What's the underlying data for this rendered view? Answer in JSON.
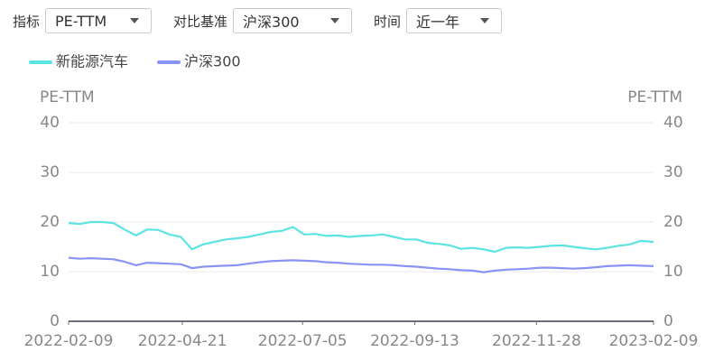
{
  "controls": [
    {
      "label": "指标",
      "value": "PE-TTM"
    },
    {
      "label": "对比基准",
      "value": "沪深300"
    },
    {
      "label": "时间",
      "value": "近一年"
    }
  ],
  "chart_data": {
    "type": "line",
    "y_label": "PE-TTM",
    "y2_label": "PE-TTM",
    "x": [
      "2022-02-09",
      "2022-02-16",
      "2022-02-23",
      "2022-03-02",
      "2022-03-09",
      "2022-03-16",
      "2022-03-23",
      "2022-03-30",
      "2022-04-06",
      "2022-04-13",
      "2022-04-20",
      "2022-04-27",
      "2022-05-04",
      "2022-05-11",
      "2022-05-18",
      "2022-05-25",
      "2022-06-01",
      "2022-06-08",
      "2022-06-15",
      "2022-06-22",
      "2022-06-29",
      "2022-07-06",
      "2022-07-13",
      "2022-07-20",
      "2022-07-27",
      "2022-08-03",
      "2022-08-10",
      "2022-08-17",
      "2022-08-24",
      "2022-08-31",
      "2022-09-07",
      "2022-09-14",
      "2022-09-21",
      "2022-09-28",
      "2022-10-05",
      "2022-10-12",
      "2022-10-19",
      "2022-10-26",
      "2022-11-02",
      "2022-11-09",
      "2022-11-16",
      "2022-11-23",
      "2022-11-30",
      "2022-12-07",
      "2022-12-14",
      "2022-12-21",
      "2022-12-28",
      "2023-01-04",
      "2023-01-11",
      "2023-01-18",
      "2023-01-25",
      "2023-02-01",
      "2023-02-09"
    ],
    "series": [
      {
        "name": "新能源汽车",
        "color": "#5ee3e3",
        "values": [
          19.8,
          19.6,
          20.0,
          20.0,
          19.8,
          18.5,
          17.3,
          18.5,
          18.4,
          17.5,
          17.0,
          14.5,
          15.5,
          16.0,
          16.5,
          16.7,
          17.0,
          17.5,
          18.0,
          18.2,
          19.0,
          17.5,
          17.6,
          17.2,
          17.3,
          17.0,
          17.2,
          17.3,
          17.5,
          17.0,
          16.5,
          16.5,
          15.8,
          15.6,
          15.3,
          14.6,
          14.8,
          14.5,
          14.0,
          14.8,
          14.9,
          14.8,
          15.0,
          15.2,
          15.3,
          15.0,
          14.7,
          14.5,
          14.8,
          15.2,
          15.5,
          16.2,
          16.0
        ]
      },
      {
        "name": "沪深300",
        "color": "#8a93f6",
        "values": [
          12.8,
          12.6,
          12.7,
          12.6,
          12.5,
          12.0,
          11.3,
          11.8,
          11.7,
          11.6,
          11.5,
          10.7,
          11.0,
          11.1,
          11.2,
          11.3,
          11.6,
          11.9,
          12.1,
          12.2,
          12.3,
          12.2,
          12.1,
          11.9,
          11.8,
          11.6,
          11.5,
          11.4,
          11.4,
          11.3,
          11.1,
          11.0,
          10.8,
          10.6,
          10.5,
          10.3,
          10.2,
          9.9,
          10.2,
          10.4,
          10.5,
          10.6,
          10.8,
          10.8,
          10.7,
          10.6,
          10.7,
          10.9,
          11.1,
          11.2,
          11.3,
          11.2,
          11.1
        ]
      }
    ],
    "xlim": [
      "2022-02-09",
      "2023-02-09"
    ],
    "xticks": [
      "2022-02-09",
      "2022-04-21",
      "2022-07-05",
      "2022-09-13",
      "2022-11-28",
      "2023-02-09"
    ],
    "ylim": [
      0,
      40
    ],
    "yticks": [
      0,
      10,
      20,
      30,
      40
    ],
    "y2lim": [
      0,
      40
    ],
    "y2ticks": [
      0,
      10,
      20,
      30,
      40
    ],
    "grid": true
  }
}
